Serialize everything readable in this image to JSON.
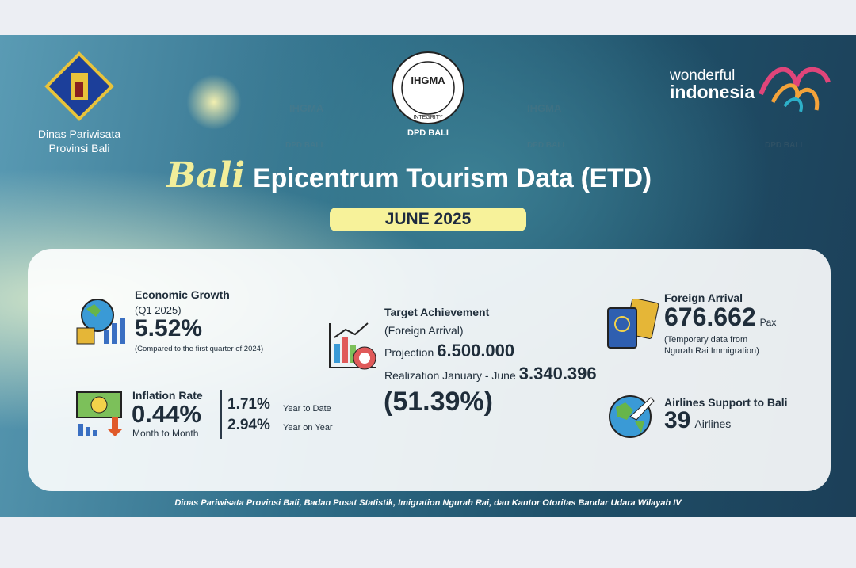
{
  "logos": {
    "left": [
      "Dinas Pariwisata",
      "Provinsi Bali"
    ],
    "center_badge": "IHGMA",
    "center_motto": "INTEGRITY",
    "center_caption": "DPD BALI",
    "right": [
      "wonderful",
      "indonesia"
    ]
  },
  "title": {
    "script": "Bali",
    "main": "Epicentrum Tourism Data (ETD)"
  },
  "period": "JUNE 2025",
  "economic_growth": {
    "label": "Economic Growth",
    "period": "(Q1 2025)",
    "value": "5.52%",
    "note": "(Compared to the first quarter of 2024)"
  },
  "inflation": {
    "label": "Inflation Rate",
    "value": "0.44%",
    "value_caption": "Month to Month",
    "ytd": "1.71%",
    "ytd_caption": "Year to Date",
    "yoy": "2.94%",
    "yoy_caption": "Year on Year"
  },
  "target": {
    "label": "Target Achievement",
    "sub": "(Foreign Arrival)",
    "projection_label": "Projection",
    "projection": "6.500.000",
    "realization_label": "Realization January - June",
    "realization": "3.340.396",
    "percent": "(51.39%)"
  },
  "foreign_arrival": {
    "label": "Foreign Arrival",
    "value": "676.662",
    "unit": "Pax",
    "note": [
      "(Temporary data from",
      "Ngurah Rai Immigration)"
    ]
  },
  "airlines": {
    "label": "Airlines Support to Bali",
    "value": "39",
    "unit": "Airlines"
  },
  "source": "Dinas Pariwisata Provinsi Bali, Badan Pusat Statistik, Imigration Ngurah Rai, dan Kantor Otoritas Bandar Udara Wilayah IV"
}
